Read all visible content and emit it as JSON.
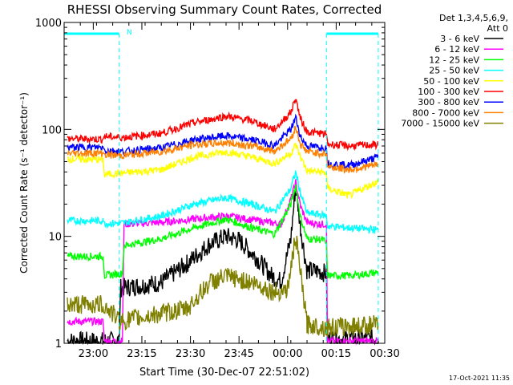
{
  "chart_data": {
    "type": "line",
    "title": "RHESSI Observing Summary Count Rates, Corrected",
    "xlabel": "Start Time (30-Dec-07 22:51:02)",
    "ylabel": "Corrected Count Rate (s⁻¹ detector⁻¹)",
    "yscale": "log",
    "ylim": [
      1,
      1000
    ],
    "y_ticks": [
      {
        "value": 1,
        "label": "1"
      },
      {
        "value": 10,
        "label": "10"
      },
      {
        "value": 100,
        "label": "100"
      },
      {
        "value": 1000,
        "label": "1000"
      }
    ],
    "xlim_minutes_after_22_51": [
      0,
      99
    ],
    "x_ticks": [
      {
        "minutes": 9,
        "label": "23:00"
      },
      {
        "minutes": 24,
        "label": "23:15"
      },
      {
        "minutes": 39,
        "label": "23:30"
      },
      {
        "minutes": 54,
        "label": "23:45"
      },
      {
        "minutes": 69,
        "label": "00:00"
      },
      {
        "minutes": 84,
        "label": "00:15"
      },
      {
        "minutes": 99,
        "label": "00:30"
      }
    ],
    "legend_header": [
      "Det 1,3,4,5,6,9,",
      "Att 0"
    ],
    "legend_position": "right",
    "annotations": {
      "night_marker": "N",
      "footer_date": "17-Oct-2021 11:35"
    },
    "night_intervals_minutes": [
      [
        0,
        17
      ],
      [
        81,
        97
      ]
    ],
    "series": [
      {
        "name": "3 - 6 keV",
        "color": "#000000",
        "points": [
          [
            1,
            1.05
          ],
          [
            17,
            1.05
          ],
          [
            17.5,
            3.3
          ],
          [
            22,
            3.4
          ],
          [
            30,
            3.7
          ],
          [
            38,
            5.6
          ],
          [
            45,
            8.5
          ],
          [
            50,
            10
          ],
          [
            54,
            9.2
          ],
          [
            59,
            6.5
          ],
          [
            64,
            4.3
          ],
          [
            67,
            3.8
          ],
          [
            70,
            9.5
          ],
          [
            71.5,
            30
          ],
          [
            73,
            12
          ],
          [
            75,
            4.8
          ],
          [
            79,
            4.7
          ],
          [
            81,
            4.5
          ],
          [
            81.3,
            1.1
          ],
          [
            97,
            1.1
          ]
        ]
      },
      {
        "name": "6 - 12 keV",
        "color": "#ff00ff",
        "points": [
          [
            1,
            1.6
          ],
          [
            12,
            1.6
          ],
          [
            12.5,
            1.05
          ],
          [
            18,
            1.05
          ],
          [
            18.5,
            13
          ],
          [
            30,
            13.5
          ],
          [
            40,
            14.5
          ],
          [
            50,
            15.5
          ],
          [
            60,
            14
          ],
          [
            67,
            13
          ],
          [
            70,
            22
          ],
          [
            71.5,
            32
          ],
          [
            73,
            19
          ],
          [
            75,
            13.5
          ],
          [
            79,
            13
          ],
          [
            81,
            13
          ],
          [
            81.3,
            1.05
          ],
          [
            97,
            1.05
          ]
        ]
      },
      {
        "name": "12 - 25 keV",
        "color": "#00ff00",
        "points": [
          [
            1,
            6.5
          ],
          [
            12,
            6.5
          ],
          [
            12.5,
            4.3
          ],
          [
            18,
            4.5
          ],
          [
            18.5,
            8.2
          ],
          [
            30,
            9.5
          ],
          [
            40,
            12
          ],
          [
            50,
            14.5
          ],
          [
            58,
            12
          ],
          [
            65,
            10.5
          ],
          [
            70,
            20
          ],
          [
            71.5,
            30
          ],
          [
            73,
            15
          ],
          [
            75,
            9.5
          ],
          [
            80,
            9.3
          ],
          [
            81,
            8.5
          ],
          [
            81.3,
            4.3
          ],
          [
            89,
            4.3
          ],
          [
            97,
            4.6
          ]
        ]
      },
      {
        "name": "25 - 50 keV",
        "color": "#00ffff",
        "points": [
          [
            1,
            14
          ],
          [
            12,
            14
          ],
          [
            12.5,
            13.2
          ],
          [
            18,
            13.3
          ],
          [
            30,
            15.5
          ],
          [
            40,
            20
          ],
          [
            50,
            23
          ],
          [
            58,
            20
          ],
          [
            65,
            17
          ],
          [
            70,
            28
          ],
          [
            71.5,
            40
          ],
          [
            73,
            25
          ],
          [
            75,
            16.5
          ],
          [
            79,
            16
          ],
          [
            81,
            15.5
          ],
          [
            81.3,
            12.5
          ],
          [
            88,
            12
          ],
          [
            97,
            11.5
          ]
        ]
      },
      {
        "name": "50 - 100 keV",
        "color": "#ffff00",
        "points": [
          [
            1,
            53
          ],
          [
            12,
            52
          ],
          [
            12.5,
            38
          ],
          [
            18,
            39
          ],
          [
            30,
            42
          ],
          [
            40,
            55
          ],
          [
            50,
            62
          ],
          [
            58,
            55
          ],
          [
            65,
            48
          ],
          [
            70,
            60
          ],
          [
            71.5,
            72
          ],
          [
            73,
            55
          ],
          [
            75,
            41
          ],
          [
            79,
            40
          ],
          [
            81,
            39
          ],
          [
            81.3,
            28
          ],
          [
            88,
            24
          ],
          [
            97,
            33
          ]
        ]
      },
      {
        "name": "100 - 300 keV",
        "color": "#ff0000",
        "points": [
          [
            1,
            82
          ],
          [
            12,
            81
          ],
          [
            12.5,
            86
          ],
          [
            18,
            84
          ],
          [
            30,
            92
          ],
          [
            40,
            115
          ],
          [
            50,
            133
          ],
          [
            58,
            120
          ],
          [
            65,
            100
          ],
          [
            70,
            145
          ],
          [
            71.5,
            195
          ],
          [
            73,
            125
          ],
          [
            75,
            95
          ],
          [
            79,
            92
          ],
          [
            81,
            90
          ],
          [
            81.3,
            73
          ],
          [
            88,
            70
          ],
          [
            97,
            72
          ]
        ]
      },
      {
        "name": "300 - 800 keV",
        "color": "#0000ff",
        "points": [
          [
            1,
            68
          ],
          [
            12,
            68
          ],
          [
            12.5,
            64
          ],
          [
            18,
            62
          ],
          [
            30,
            67
          ],
          [
            40,
            80
          ],
          [
            50,
            87
          ],
          [
            58,
            80
          ],
          [
            65,
            71
          ],
          [
            70,
            100
          ],
          [
            71.5,
            130
          ],
          [
            73,
            85
          ],
          [
            75,
            70
          ],
          [
            79,
            68
          ],
          [
            81,
            67
          ],
          [
            81.3,
            48
          ],
          [
            88,
            46
          ],
          [
            97,
            55
          ]
        ]
      },
      {
        "name": "800 - 7000 keV",
        "color": "#ff8000",
        "points": [
          [
            1,
            60
          ],
          [
            12,
            60
          ],
          [
            12.5,
            58
          ],
          [
            18,
            57
          ],
          [
            30,
            62
          ],
          [
            40,
            72
          ],
          [
            50,
            75
          ],
          [
            58,
            70
          ],
          [
            65,
            63
          ],
          [
            70,
            82
          ],
          [
            71.5,
            105
          ],
          [
            73,
            72
          ],
          [
            75,
            62
          ],
          [
            79,
            60
          ],
          [
            81,
            59
          ],
          [
            81.3,
            45
          ],
          [
            88,
            42
          ],
          [
            97,
            47
          ]
        ]
      },
      {
        "name": "7000 - 15000 keV",
        "color": "#808000",
        "points": [
          [
            1,
            2.3
          ],
          [
            12,
            2.3
          ],
          [
            17.5,
            1.6
          ],
          [
            30,
            1.9
          ],
          [
            38,
            2.1
          ],
          [
            45,
            3.7
          ],
          [
            50,
            4.2
          ],
          [
            58,
            3.7
          ],
          [
            65,
            3.0
          ],
          [
            69,
            3.2
          ],
          [
            71.5,
            10
          ],
          [
            73,
            4.5
          ],
          [
            75,
            1.5
          ],
          [
            81,
            1.4
          ],
          [
            97,
            1.5
          ]
        ]
      }
    ]
  }
}
